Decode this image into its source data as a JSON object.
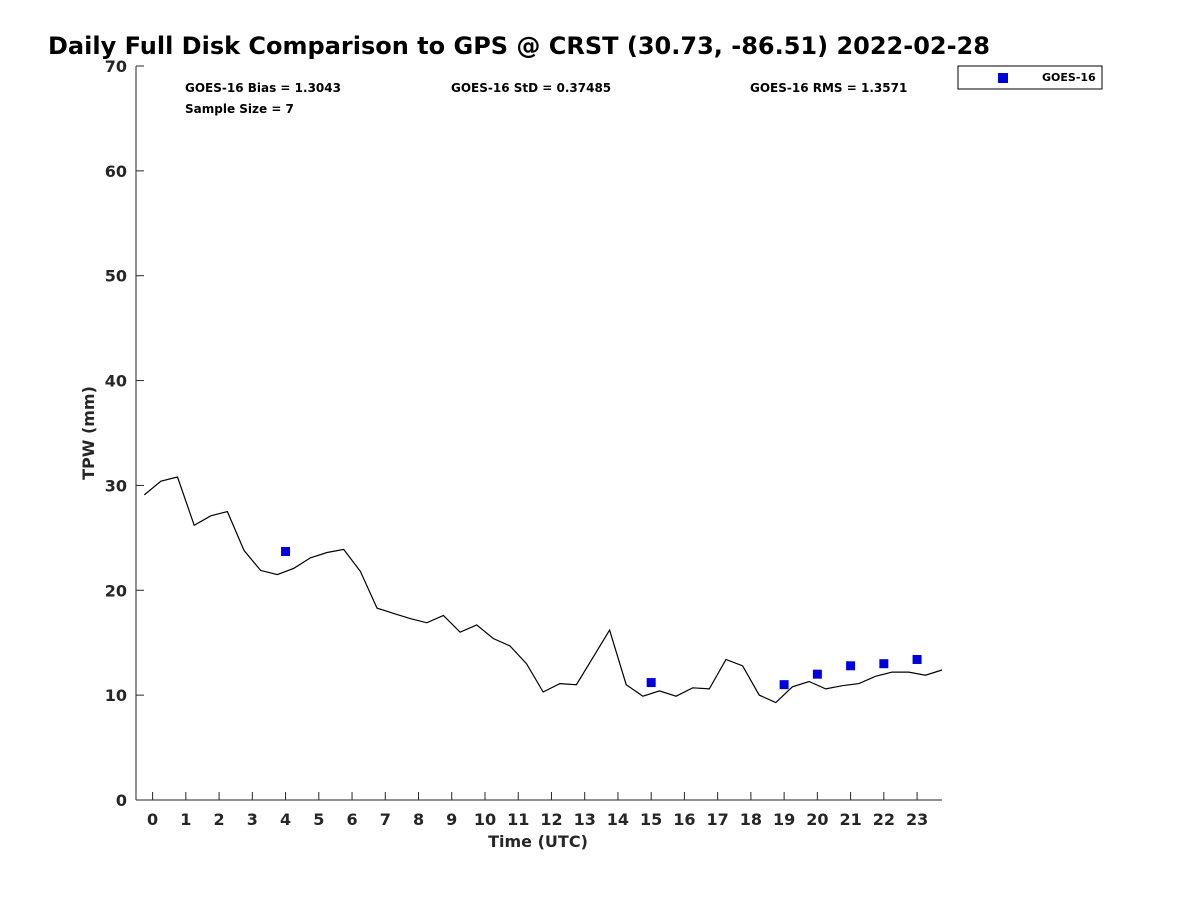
{
  "chart_data": {
    "type": "line+scatter",
    "title": "Daily Full Disk Comparison to GPS @ CRST (30.73, -86.51) 2022-02-28",
    "xlabel": "Time (UTC)",
    "ylabel": "TPW (mm)",
    "xlim": [
      -0.5,
      23.75
    ],
    "ylim": [
      0,
      70
    ],
    "x_ticks": [
      0,
      1,
      2,
      3,
      4,
      5,
      6,
      7,
      8,
      9,
      10,
      11,
      12,
      13,
      14,
      15,
      16,
      17,
      18,
      19,
      20,
      21,
      22,
      23
    ],
    "x_tick_labels": [
      "0",
      "1",
      "2",
      "3",
      "4",
      "5",
      "6",
      "7",
      "8",
      "9",
      "10",
      "11",
      "12",
      "13",
      "14",
      "15",
      "16",
      "17",
      "18",
      "19",
      "20",
      "21",
      "22",
      "23"
    ],
    "y_ticks": [
      0,
      10,
      20,
      30,
      40,
      50,
      60,
      70
    ],
    "y_tick_labels": [
      "0",
      "10",
      "20",
      "30",
      "40",
      "50",
      "60",
      "70"
    ],
    "legend": {
      "placement": "top-right",
      "entries": [
        "GOES-16"
      ]
    },
    "stats": {
      "bias": "GOES-16 Bias = 1.3043",
      "std": "GOES-16 StD = 0.37485",
      "rms": "GOES-16 RMS = 1.3571",
      "sample_size": "Sample Size = 7"
    },
    "series": [
      {
        "name": "GPS",
        "kind": "line",
        "color": "#000000",
        "x": [
          -0.25,
          0.25,
          0.75,
          1.25,
          1.75,
          2.25,
          2.75,
          3.25,
          3.75,
          4.25,
          4.75,
          5.25,
          5.75,
          6.25,
          6.75,
          7.25,
          7.75,
          8.25,
          8.75,
          9.25,
          9.75,
          10.25,
          10.75,
          11.25,
          11.75,
          12.25,
          12.75,
          13.25,
          13.75,
          14.25,
          14.75,
          15.25,
          15.75,
          16.25,
          16.75,
          17.25,
          17.75,
          18.25,
          18.75,
          19.25,
          19.75,
          20.25,
          20.75,
          21.25,
          21.75,
          22.25,
          22.75,
          23.25,
          23.75
        ],
        "y": [
          29.1,
          30.4,
          30.8,
          26.2,
          27.1,
          27.5,
          23.8,
          21.9,
          21.5,
          22.1,
          23.1,
          23.6,
          23.9,
          21.8,
          18.3,
          17.8,
          17.3,
          16.9,
          17.6,
          16.0,
          16.7,
          15.4,
          14.7,
          13.0,
          10.3,
          11.1,
          11.0,
          13.6,
          16.2,
          11.0,
          9.9,
          10.4,
          9.9,
          10.7,
          10.6,
          13.4,
          12.8,
          10.0,
          9.3,
          10.8,
          11.3,
          10.6,
          10.9,
          11.1,
          11.8,
          12.2,
          12.2,
          11.9,
          12.4
        ]
      },
      {
        "name": "GOES-16",
        "kind": "scatter",
        "color": "#0000dd",
        "x": [
          4,
          15,
          19,
          20,
          21,
          22,
          23
        ],
        "y": [
          23.7,
          11.2,
          11.0,
          12.0,
          12.8,
          13.0,
          13.4
        ]
      }
    ]
  }
}
